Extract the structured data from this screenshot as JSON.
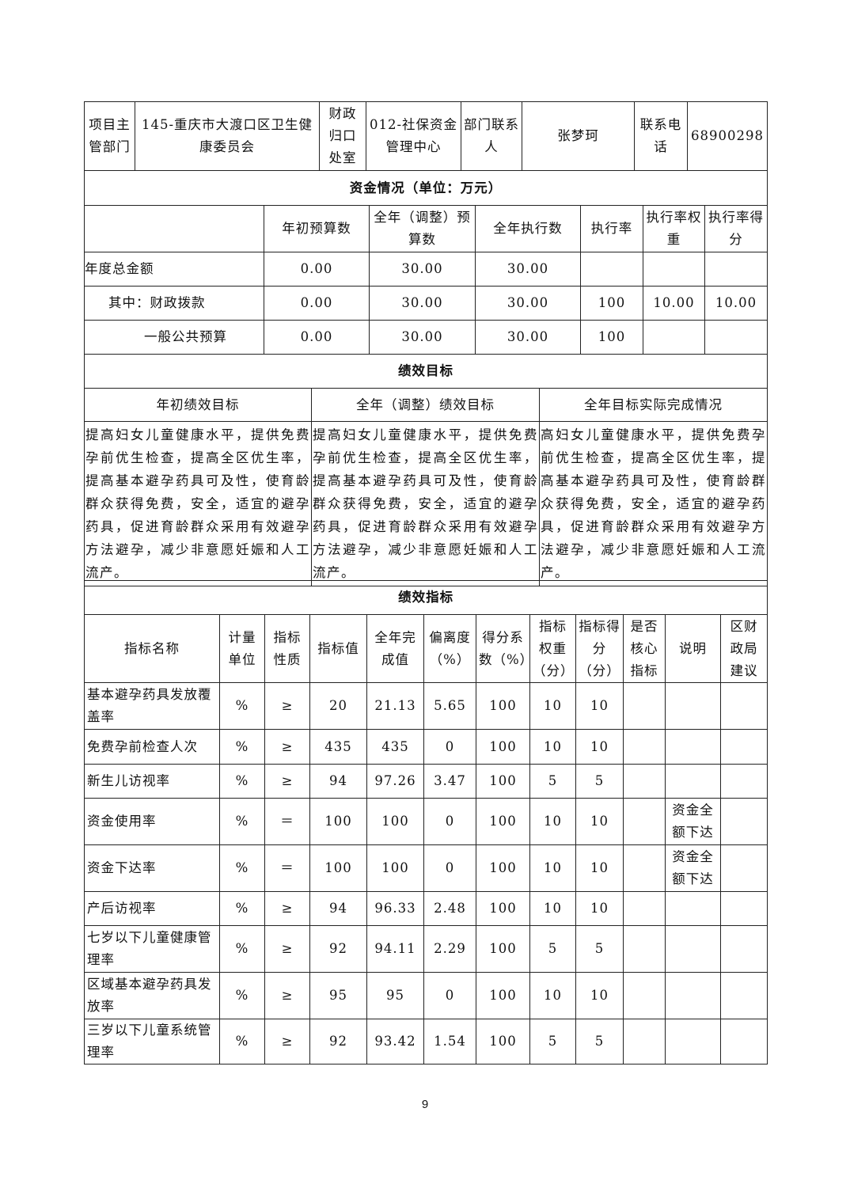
{
  "header": {
    "dept_label": "项目主管部门",
    "dept_value": "145-重庆市大渡口区卫生健康委员会",
    "finance_label": "财政归口处室",
    "finance_value": "012-社保资金管理中心",
    "contact_label": "部门联系人",
    "contact_value": "张梦珂",
    "phone_label": "联系电话",
    "phone_value": "68900298"
  },
  "funds": {
    "title": "资金情况（单位：万元）",
    "columns": [
      "",
      "年初预算数",
      "全年（调整）预算数",
      "全年执行数",
      "执行率",
      "执行率权重",
      "执行率得分"
    ],
    "rows": [
      [
        "年度总金额",
        "0.00",
        "30.00",
        "30.00",
        "",
        "",
        ""
      ],
      [
        "其中：财政拨款",
        "0.00",
        "30.00",
        "30.00",
        "100",
        "10.00",
        "10.00"
      ],
      [
        "一般公共预算",
        "0.00",
        "30.00",
        "30.00",
        "100",
        "",
        ""
      ]
    ]
  },
  "goals": {
    "title": "绩效目标",
    "columns": [
      "年初绩效目标",
      "全年（调整）绩效目标",
      "全年目标实际完成情况"
    ],
    "texts": [
      "提高妇女儿童健康水平，提供免费孕前优生检查，提高全区优生率，提高基本避孕药具可及性，使育龄群众获得免费，安全，适宜的避孕药具，促进育龄群众采用有效避孕方法避孕，减少非意愿妊娠和人工流产。",
      "提高妇女儿童健康水平，提供免费孕前优生检查，提高全区优生率，提高基本避孕药具可及性，使育龄群众获得免费，安全，适宜的避孕药具，促进育龄群众采用有效避孕方法避孕，减少非意愿妊娠和人工流产。",
      "高妇女儿童健康水平，提供免费孕前优生检查，提高全区优生率，提高基本避孕药具可及性，使育龄群众获得免费，安全，适宜的避孕药具，促进育龄群众采用有效避孕方法避孕，减少非意愿妊娠和人工流产。"
    ]
  },
  "indicators": {
    "title": "绩效指标",
    "columns": [
      "指标名称",
      "计量单位",
      "指标性质",
      "指标值",
      "全年完成值",
      "偏离度（%）",
      "得分系数（%）",
      "指标权重（分）",
      "指标得分（分）",
      "是否核心指标",
      "说明",
      "区财政局建议"
    ],
    "rows": [
      [
        "基本避孕药具发放覆盖率",
        "%",
        "≥",
        "20",
        "21.13",
        "5.65",
        "100",
        "10",
        "10",
        "",
        "",
        ""
      ],
      [
        "免费孕前检查人次",
        "%",
        "≥",
        "435",
        "435",
        "0",
        "100",
        "10",
        "10",
        "",
        "",
        ""
      ],
      [
        "新生儿访视率",
        "%",
        "≥",
        "94",
        "97.26",
        "3.47",
        "100",
        "5",
        "5",
        "",
        "",
        ""
      ],
      [
        "资金使用率",
        "%",
        "＝",
        "100",
        "100",
        "0",
        "100",
        "10",
        "10",
        "",
        "资金全额下达",
        ""
      ],
      [
        "资金下达率",
        "%",
        "＝",
        "100",
        "100",
        "0",
        "100",
        "10",
        "10",
        "",
        "资金全额下达",
        ""
      ],
      [
        "产后访视率",
        "%",
        "≥",
        "94",
        "96.33",
        "2.48",
        "100",
        "10",
        "10",
        "",
        "",
        ""
      ],
      [
        "七岁以下儿童健康管理率",
        "%",
        "≥",
        "92",
        "94.11",
        "2.29",
        "100",
        "5",
        "5",
        "",
        "",
        ""
      ],
      [
        "区域基本避孕药具发放率",
        "%",
        "≥",
        "95",
        "95",
        "0",
        "100",
        "10",
        "10",
        "",
        "",
        ""
      ],
      [
        "三岁以下儿童系统管理率",
        "%",
        "≥",
        "92",
        "93.42",
        "1.54",
        "100",
        "5",
        "5",
        "",
        "",
        ""
      ]
    ]
  },
  "page_number": "9"
}
